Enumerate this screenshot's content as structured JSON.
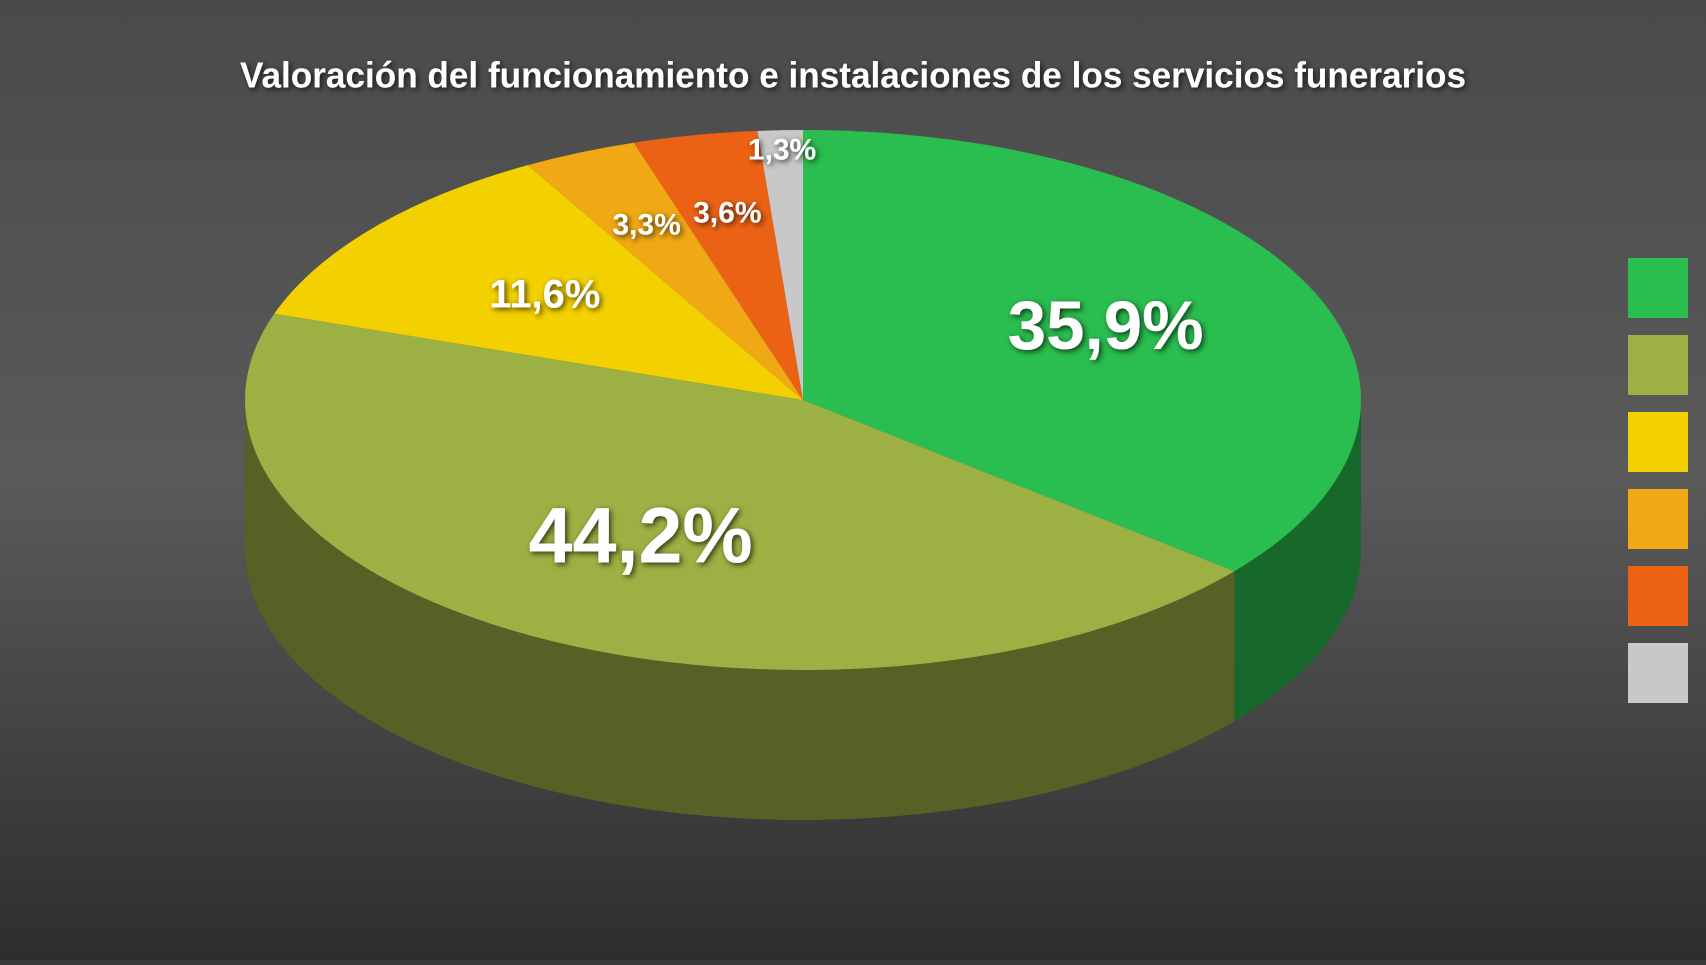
{
  "chart_data": {
    "type": "pie",
    "title": "Valoración del funcionamiento e instalaciones de los servicios funerarios",
    "values": [
      35.9,
      44.2,
      11.6,
      3.3,
      3.6,
      1.3
    ],
    "value_labels": [
      "35,9%",
      "44,2%",
      "11,6%",
      "3,3%",
      "3,6%",
      "1,3%"
    ],
    "colors": [
      "#2abd4f",
      "#9cb043",
      "#f3d000",
      "#f0a814",
      "#ec6214",
      "#c8c8c8"
    ],
    "legend": "right"
  }
}
